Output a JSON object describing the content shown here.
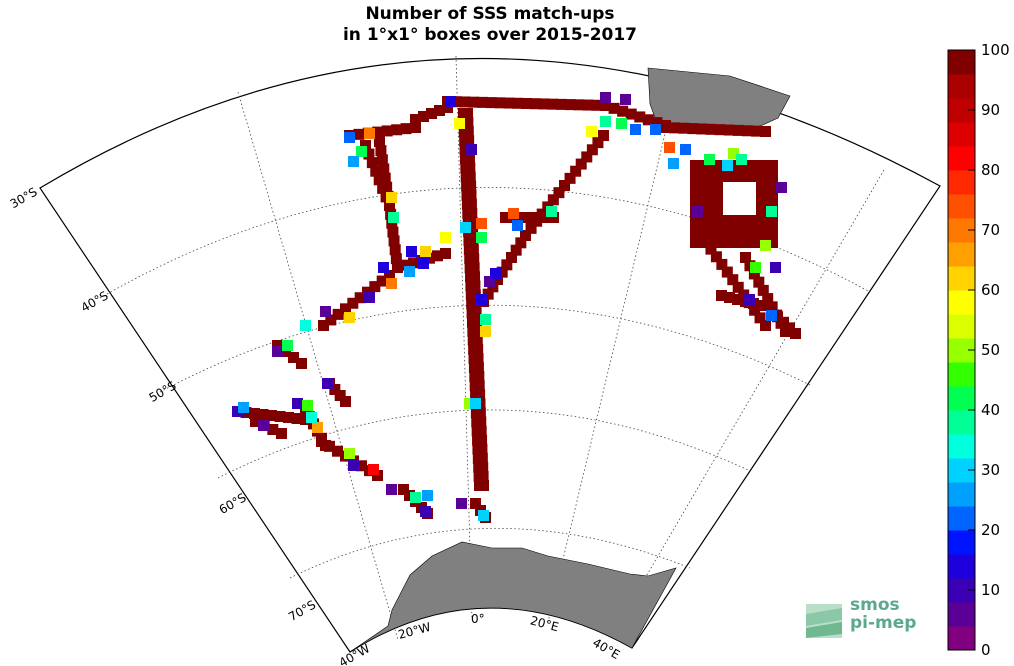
{
  "title": {
    "line1": "Number of SSS match-ups",
    "line2": "in 1°x1° boxes over 2015-2017"
  },
  "lat_labels": [
    "30°S",
    "40°S",
    "50°S",
    "60°S",
    "70°S"
  ],
  "lon_labels": [
    "40°W",
    "20°W",
    "0°",
    "20°E",
    "40°E"
  ],
  "colorbar": {
    "ticks": [
      "100",
      "90",
      "80",
      "70",
      "60",
      "50",
      "40",
      "30",
      "20",
      "10",
      "0"
    ],
    "colors": [
      "#800080",
      "#5a0096",
      "#3c00b4",
      "#1e00dc",
      "#0014ff",
      "#0064ff",
      "#00a0ff",
      "#00d2ff",
      "#00ffdc",
      "#00ff96",
      "#00ff50",
      "#32ff00",
      "#96ff00",
      "#dcff00",
      "#ffff00",
      "#ffd200",
      "#ffa000",
      "#ff7800",
      "#ff5000",
      "#ff2800",
      "#ff0000",
      "#dc0000",
      "#c00000",
      "#aa0000",
      "#800000"
    ]
  },
  "colors": {
    "land": "#808080",
    "track": "#800000"
  },
  "logo": {
    "line1": "smos",
    "line2": "pi-mep"
  }
}
